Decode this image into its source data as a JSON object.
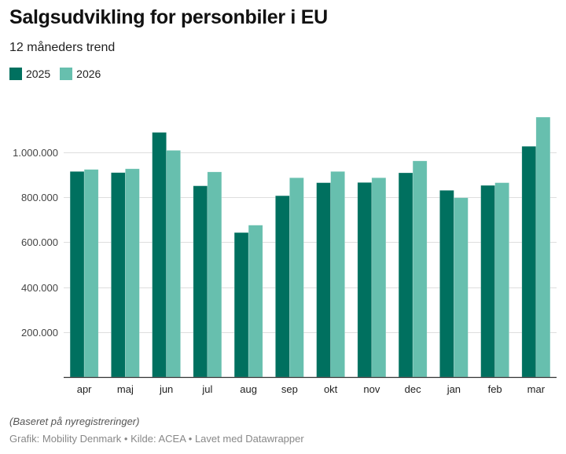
{
  "chart_data": {
    "type": "bar",
    "title": "Salgsudvikling for personbiler i EU",
    "subtitle": "12 måneders trend",
    "xlabel": "",
    "ylabel": "",
    "categories": [
      "apr",
      "maj",
      "jun",
      "jul",
      "aug",
      "sep",
      "okt",
      "nov",
      "dec",
      "jan",
      "feb",
      "mar"
    ],
    "series": [
      {
        "name": "2025",
        "color": "#00705f",
        "values": [
          915000,
          910000,
          1089000,
          851000,
          643000,
          807000,
          865000,
          866000,
          909000,
          831000,
          853000,
          1027000
        ]
      },
      {
        "name": "2026",
        "color": "#67bfae",
        "values": [
          924000,
          927000,
          1009000,
          913000,
          676000,
          887000,
          915000,
          887000,
          962000,
          798000,
          865000,
          1157000
        ]
      }
    ],
    "ylim": [
      0,
      1200000
    ],
    "yticks": [
      200000,
      400000,
      600000,
      800000,
      1000000
    ],
    "ytick_labels": [
      "200.000",
      "400.000",
      "600.000",
      "800.000",
      "1.000.000"
    ],
    "grid": true,
    "legend_position": "top-left",
    "notes": "(Baseret på nyregistreringer)",
    "byline": "Grafik: Mobility Denmark • Kilde: ACEA • Lavet med Datawrapper"
  }
}
